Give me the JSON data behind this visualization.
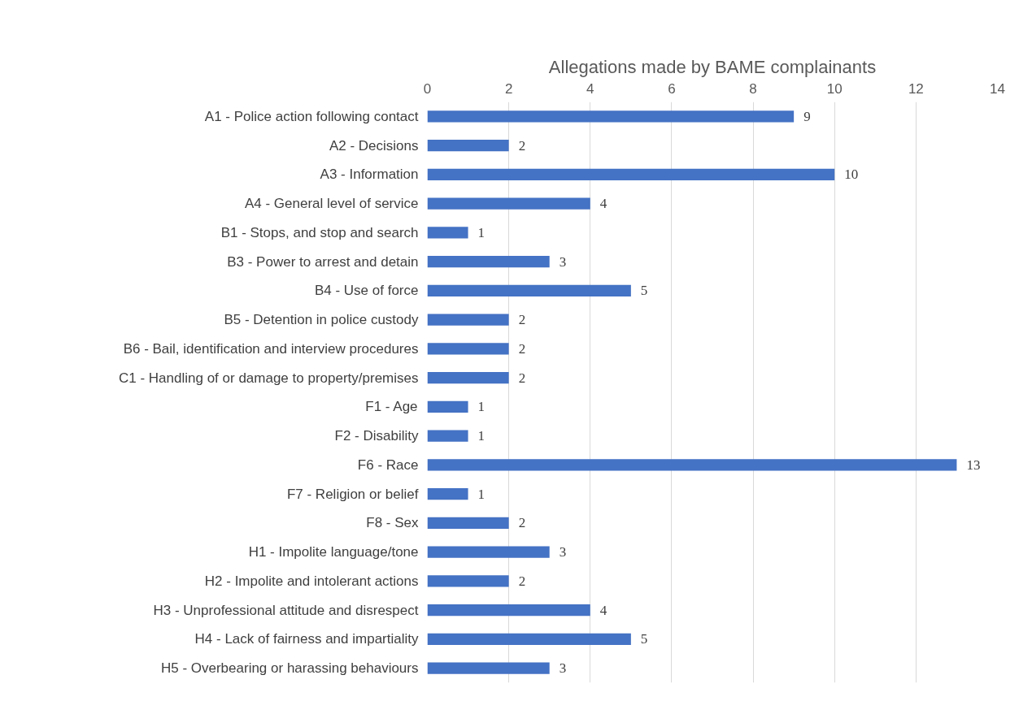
{
  "chart_data": {
    "type": "bar",
    "orientation": "horizontal",
    "title": "Allegations made by BAME complainants",
    "categories": [
      "A1 - Police action following contact",
      "A2 - Decisions",
      "A3 - Information",
      "A4 - General level of service",
      "B1 - Stops, and stop and search",
      "B3 - Power to arrest and detain",
      "B4 - Use of force",
      "B5 - Detention in police custody",
      "B6 - Bail, identification and interview procedures",
      "C1 - Handling of or damage to property/premises",
      "F1 - Age",
      "F2 - Disability",
      "F6 - Race",
      "F7 - Religion or belief",
      "F8 - Sex",
      "H1 - Impolite language/tone",
      "H2 - Impolite and intolerant actions",
      "H3 - Unprofessional attitude and disrespect",
      "H4 - Lack of fairness and impartiality",
      "H5 - Overbearing or harassing behaviours"
    ],
    "values": [
      9,
      2,
      10,
      4,
      1,
      3,
      5,
      2,
      2,
      2,
      1,
      1,
      13,
      1,
      2,
      3,
      2,
      4,
      5,
      3
    ],
    "color": "#4472c4",
    "xlim": [
      0,
      14
    ],
    "xticks": [
      0,
      2,
      4,
      6,
      8,
      10,
      12,
      14
    ],
    "grid": "x",
    "data_labels": true
  }
}
